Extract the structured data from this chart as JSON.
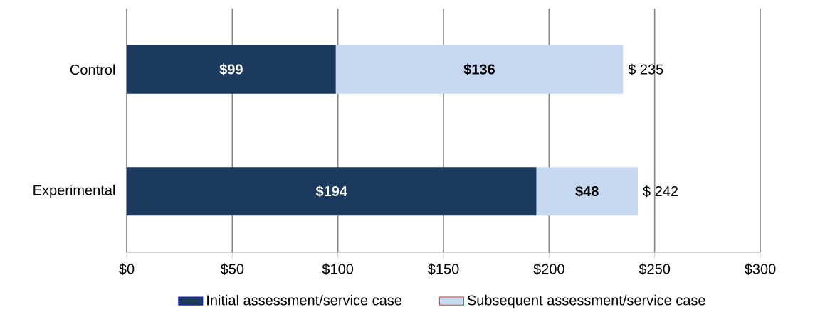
{
  "chart_data": {
    "type": "bar",
    "orientation": "horizontal",
    "stacked": true,
    "categories": [
      "Control",
      "Experimental"
    ],
    "series": [
      {
        "name": "Initial assessment/service case",
        "color": "#1b3a5e",
        "values": [
          99,
          194
        ],
        "value_labels": [
          "$99",
          "$194"
        ]
      },
      {
        "name": "Subsequent assessment/service case",
        "color": "#c6d9f0",
        "values": [
          136,
          48
        ],
        "value_labels": [
          "$136",
          "$48"
        ]
      }
    ],
    "totals": [
      "$ 235",
      "$ 242"
    ],
    "xlim": [
      0,
      300
    ],
    "xticks": [
      {
        "value": 0,
        "label": "$0"
      },
      {
        "value": 50,
        "label": "$50"
      },
      {
        "value": 100,
        "label": "$100"
      },
      {
        "value": 150,
        "label": "$150"
      },
      {
        "value": 200,
        "label": "$200"
      },
      {
        "value": 250,
        "label": "$250"
      },
      {
        "value": 300,
        "label": "$300"
      }
    ],
    "grid": "x",
    "legend": "bottom"
  }
}
